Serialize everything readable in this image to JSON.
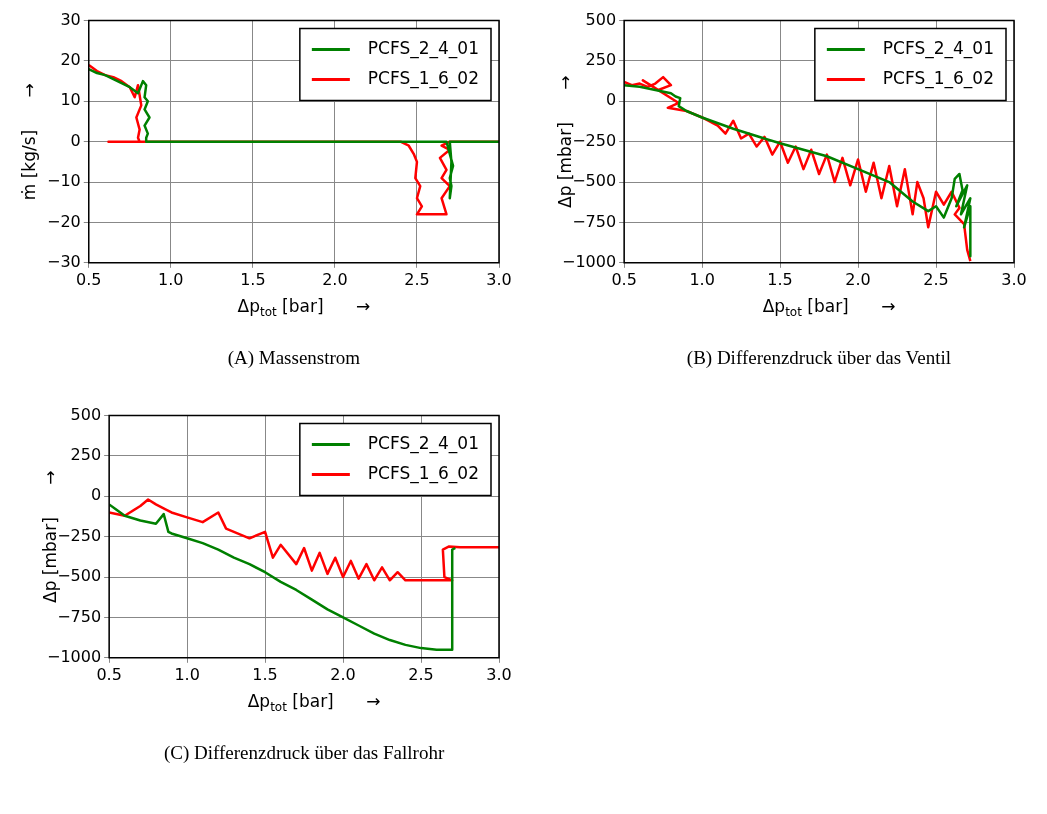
{
  "chart_data": [
    {
      "type": "line",
      "title": "(A) Massenstrom",
      "xlabel": "Δp$_{tot}$ [bar]      →",
      "ylabel": "ṁ [kg/s]      →",
      "xlim": [
        0.5,
        3.0
      ],
      "xticks": [
        {
          "value": 0.5,
          "label": "0.5"
        },
        {
          "value": 1,
          "label": "1.0"
        },
        {
          "value": 1.5,
          "label": "1.5"
        },
        {
          "value": 2,
          "label": "2.0"
        },
        {
          "value": 2.5,
          "label": "2.5"
        },
        {
          "value": 3,
          "label": "3.0"
        }
      ],
      "ylim": [
        -30,
        30
      ],
      "yticks": [
        -30,
        -20,
        -10,
        0,
        10,
        20,
        30
      ],
      "grid": true,
      "legend": "top right",
      "series": [
        {
          "name": "PCFS_2_4_01",
          "color": "#008000",
          "x": [
            0.5,
            0.55,
            0.6,
            0.65,
            0.7,
            0.75,
            0.8,
            0.83,
            0.85,
            0.84,
            0.86,
            0.84,
            0.87,
            0.84,
            0.86,
            0.85,
            0.85,
            1.5,
            2.4,
            2.68,
            2.7,
            2.72,
            2.7,
            2.71,
            2.7,
            2.71,
            2.7,
            3.0
          ],
          "values": [
            18,
            17,
            16.5,
            15.5,
            14.5,
            13.5,
            12,
            15,
            14,
            11,
            10,
            8,
            6,
            4,
            2,
            1,
            0,
            0,
            0,
            0,
            -3,
            -6,
            -9,
            -11,
            -14,
            -5,
            0,
            0
          ]
        },
        {
          "name": "PCFS_1_6_02",
          "color": "#ff0000",
          "x": [
            0.5,
            0.55,
            0.6,
            0.65,
            0.7,
            0.75,
            0.78,
            0.8,
            0.82,
            0.79,
            0.81,
            0.8,
            0.81,
            0.62,
            1.5,
            2.4,
            2.45,
            2.48,
            2.5,
            2.49,
            2.52,
            2.5,
            2.53,
            2.5,
            2.68,
            2.65,
            2.7,
            2.65,
            2.68,
            2.64,
            2.7,
            2.65,
            2.7,
            3.0
          ],
          "values": [
            19,
            17.5,
            16.5,
            16,
            15,
            13.5,
            11,
            14,
            9,
            6,
            3,
            1,
            0,
            0,
            0,
            0,
            -1,
            -3,
            -5,
            -9,
            -11,
            -14,
            -16,
            -18,
            -18,
            -14,
            -11,
            -9,
            -7,
            -4,
            -2,
            -1,
            0,
            0
          ]
        }
      ]
    },
    {
      "type": "line",
      "title": "(B) Differenzdruck über das Ventil",
      "xlabel": "Δp$_{tot}$ [bar]      →",
      "ylabel": "Δp [mbar]      →",
      "xlim": [
        0.5,
        3.0
      ],
      "xticks": [
        {
          "value": 0.5,
          "label": "0.5"
        },
        {
          "value": 1,
          "label": "1.0"
        },
        {
          "value": 1.5,
          "label": "1.5"
        },
        {
          "value": 2,
          "label": "2.0"
        },
        {
          "value": 2.5,
          "label": "2.5"
        },
        {
          "value": 3,
          "label": "3.0"
        }
      ],
      "ylim": [
        -1000,
        500
      ],
      "yticks": [
        -1000,
        -750,
        -500,
        -250,
        0,
        250,
        500
      ],
      "grid": true,
      "legend": "top right",
      "series": [
        {
          "name": "PCFS_2_4_01",
          "color": "#008000",
          "x": [
            0.5,
            0.6,
            0.7,
            0.8,
            0.83,
            0.86,
            0.85,
            0.9,
            1.0,
            1.2,
            1.5,
            1.8,
            2.0,
            2.2,
            2.35,
            2.45,
            2.5,
            2.55,
            2.6,
            2.62,
            2.65,
            2.67,
            2.63,
            2.7,
            2.66,
            2.72,
            2.68,
            2.72,
            2.72
          ],
          "values": [
            100,
            90,
            70,
            50,
            30,
            20,
            -30,
            -60,
            -100,
            -170,
            -260,
            -340,
            -420,
            -500,
            -620,
            -680,
            -650,
            -720,
            -600,
            -480,
            -450,
            -550,
            -650,
            -520,
            -700,
            -600,
            -780,
            -650,
            -960
          ]
        },
        {
          "name": "PCFS_1_6_02",
          "color": "#ff0000",
          "x": [
            0.5,
            0.55,
            0.6,
            0.65,
            0.7,
            0.75,
            0.8,
            0.72,
            0.62,
            0.85,
            0.78,
            0.9,
            1.0,
            1.1,
            1.15,
            1.2,
            1.25,
            1.3,
            1.35,
            1.4,
            1.45,
            1.5,
            1.55,
            1.6,
            1.65,
            1.7,
            1.75,
            1.8,
            1.85,
            1.9,
            1.95,
            2.0,
            2.05,
            2.1,
            2.15,
            2.2,
            2.25,
            2.3,
            2.35,
            2.38,
            2.42,
            2.45,
            2.5,
            2.55,
            2.6,
            2.65,
            2.62,
            2.68,
            2.7,
            2.72
          ],
          "values": [
            120,
            100,
            110,
            90,
            110,
            150,
            100,
            70,
            130,
            -10,
            -40,
            -60,
            -100,
            -150,
            -200,
            -120,
            -230,
            -200,
            -280,
            -220,
            -330,
            -250,
            -380,
            -280,
            -420,
            -300,
            -450,
            -330,
            -500,
            -350,
            -520,
            -360,
            -560,
            -380,
            -600,
            -400,
            -650,
            -420,
            -700,
            -500,
            -600,
            -780,
            -560,
            -640,
            -560,
            -660,
            -700,
            -760,
            -920,
            -990
          ]
        }
      ]
    },
    {
      "type": "line",
      "title": "(C) Differenzdruck über das Fallrohr",
      "xlabel": "Δp$_{tot}$ [bar]      →",
      "ylabel": "Δp [mbar]      →",
      "xlim": [
        0.5,
        3.0
      ],
      "xticks": [
        {
          "value": 0.5,
          "label": "0.5"
        },
        {
          "value": 1,
          "label": "1.0"
        },
        {
          "value": 1.5,
          "label": "1.5"
        },
        {
          "value": 2,
          "label": "2.0"
        },
        {
          "value": 2.5,
          "label": "2.5"
        },
        {
          "value": 3,
          "label": "3.0"
        }
      ],
      "ylim": [
        -1000,
        500
      ],
      "yticks": [
        -1000,
        -750,
        -500,
        -250,
        0,
        250,
        500
      ],
      "grid": true,
      "legend": "top right",
      "series": [
        {
          "name": "PCFS_2_4_01",
          "color": "#008000",
          "x": [
            0.5,
            0.6,
            0.7,
            0.8,
            0.85,
            0.88,
            0.9,
            1.0,
            1.1,
            1.2,
            1.3,
            1.4,
            1.5,
            1.6,
            1.7,
            1.8,
            1.9,
            2.0,
            2.1,
            2.2,
            2.3,
            2.4,
            2.5,
            2.6,
            2.7,
            2.7,
            2.72
          ],
          "values": [
            -50,
            -120,
            -150,
            -170,
            -110,
            -220,
            -230,
            -260,
            -290,
            -330,
            -380,
            -420,
            -470,
            -530,
            -580,
            -640,
            -700,
            -750,
            -800,
            -850,
            -890,
            -920,
            -940,
            -950,
            -950,
            -330,
            -320
          ]
        },
        {
          "name": "PCFS_1_6_02",
          "color": "#ff0000",
          "x": [
            0.5,
            0.6,
            0.7,
            0.75,
            0.8,
            0.9,
            1.0,
            1.1,
            1.2,
            1.25,
            1.3,
            1.4,
            1.5,
            1.55,
            1.6,
            1.7,
            1.75,
            1.8,
            1.85,
            1.9,
            1.95,
            2.0,
            2.05,
            2.1,
            2.15,
            2.2,
            2.25,
            2.3,
            2.35,
            2.4,
            2.5,
            2.6,
            2.7,
            2.65,
            2.64,
            2.68,
            2.75,
            3.0
          ],
          "values": [
            -100,
            -120,
            -60,
            -20,
            -50,
            -100,
            -130,
            -160,
            -100,
            -200,
            -220,
            -260,
            -220,
            -380,
            -300,
            -420,
            -320,
            -460,
            -350,
            -480,
            -380,
            -500,
            -400,
            -510,
            -420,
            -520,
            -440,
            -520,
            -470,
            -520,
            -520,
            -520,
            -520,
            -500,
            -330,
            -310,
            -315,
            -315
          ]
        }
      ]
    }
  ]
}
